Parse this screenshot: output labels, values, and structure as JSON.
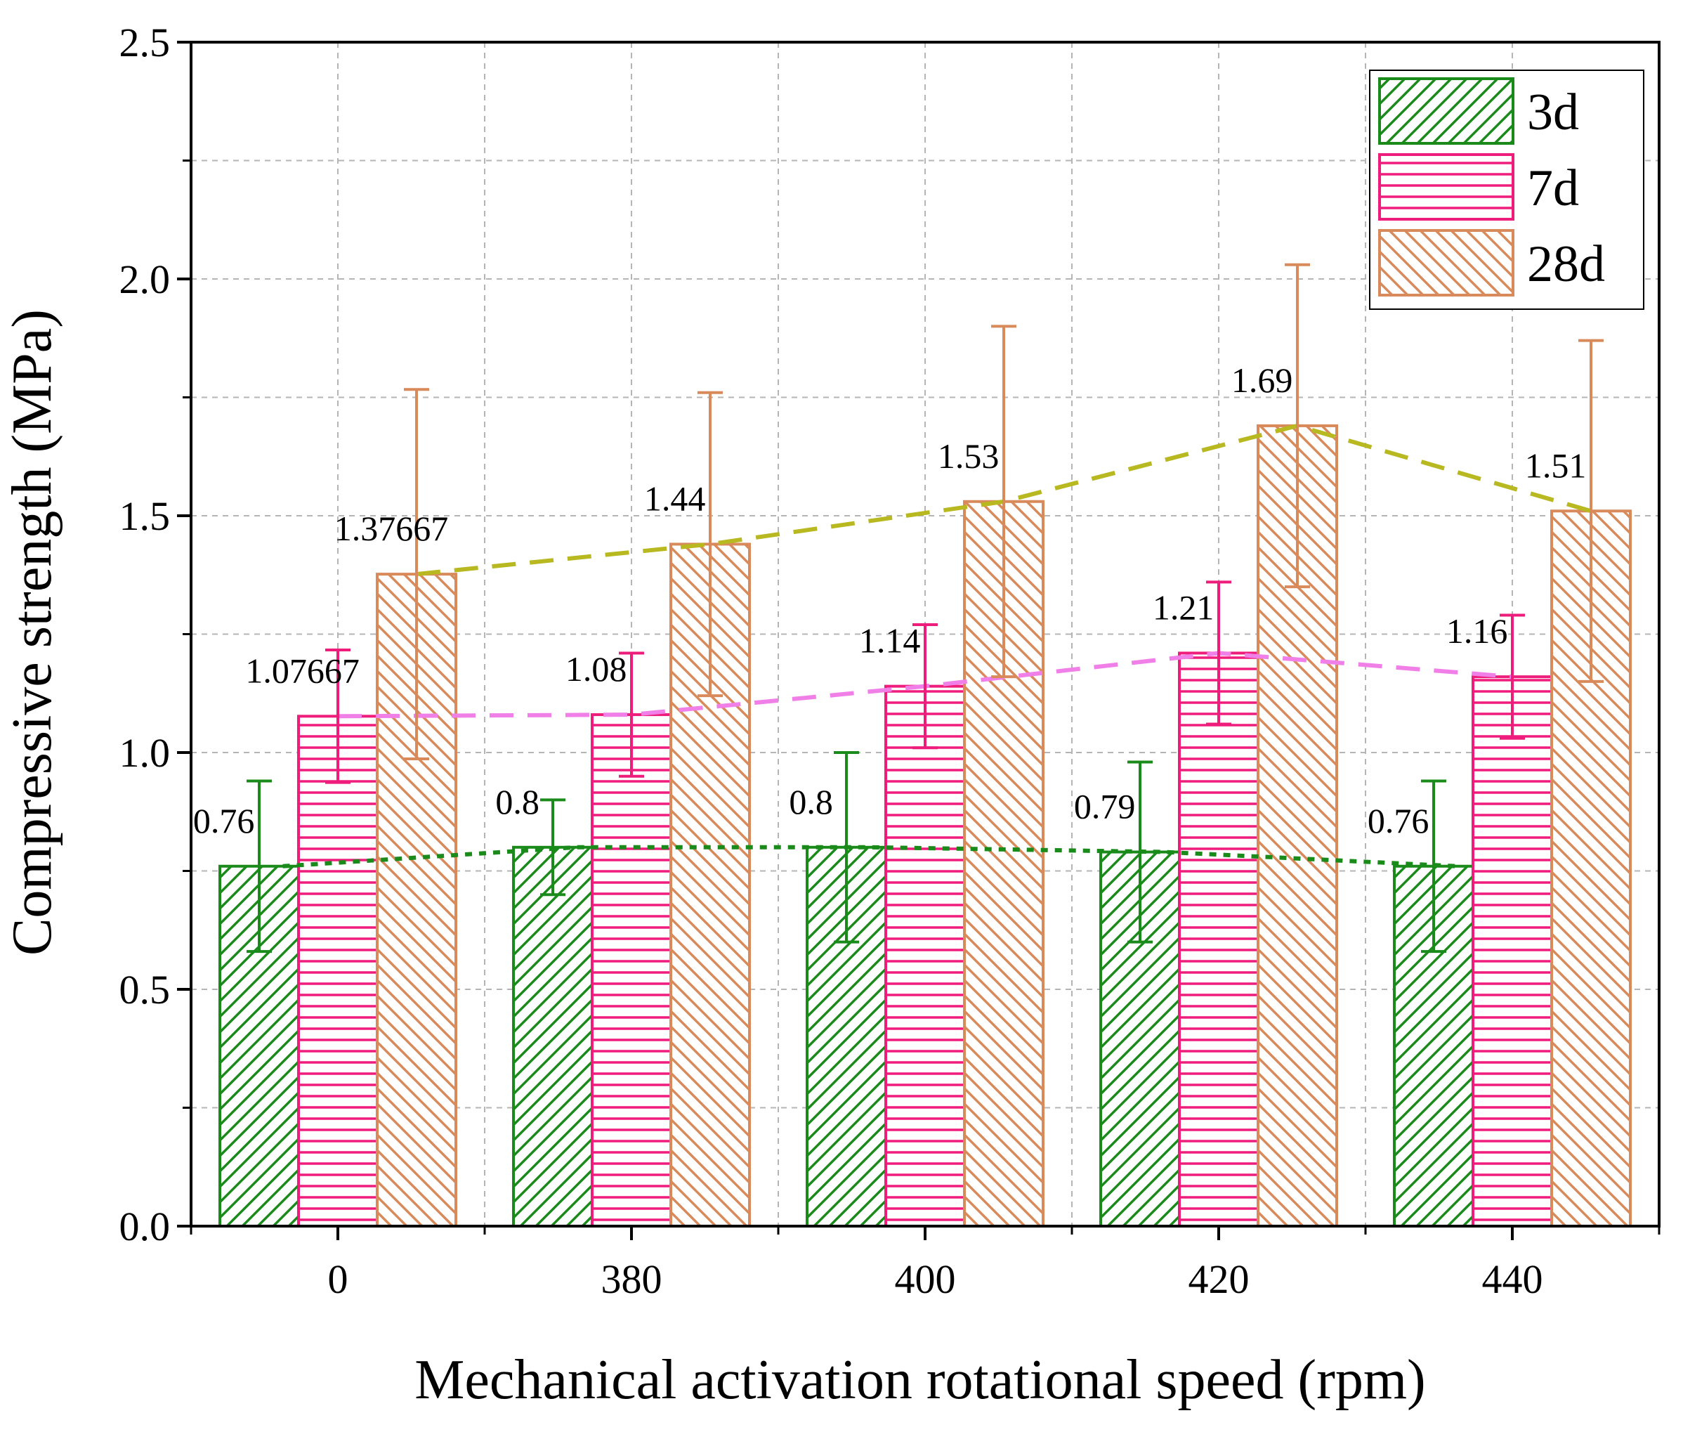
{
  "chart_data": {
    "type": "bar",
    "title": "",
    "xlabel": "Mechanical activation rotational speed (rpm)",
    "ylabel": "Compressive strength (MPa)",
    "categories": [
      "0",
      "380",
      "400",
      "420",
      "440"
    ],
    "ylim": [
      0,
      2.5
    ],
    "yticks": [
      "0.0",
      "0.5",
      "1.0",
      "1.5",
      "2.0",
      "2.5"
    ],
    "grid": true,
    "legend_position": "top-right",
    "series": [
      {
        "name": "3d",
        "color": "#1a8a1a",
        "pattern": "forward-diagonal",
        "values": [
          0.76,
          0.8,
          0.8,
          0.79,
          0.76
        ],
        "labels": [
          "0.76",
          "0.8",
          "0.8",
          "0.79",
          "0.76"
        ],
        "errors": [
          0.18,
          0.1,
          0.2,
          0.19,
          0.18
        ],
        "trend_color": "#1a8a1a",
        "trend_style": "dotted"
      },
      {
        "name": "7d",
        "color": "#ee1c7a",
        "pattern": "horizontal",
        "values": [
          1.07667,
          1.08,
          1.14,
          1.21,
          1.16
        ],
        "labels": [
          "1.07667",
          "1.08",
          "1.14",
          "1.21",
          "1.16"
        ],
        "errors": [
          0.14,
          0.13,
          0.13,
          0.15,
          0.13
        ],
        "trend_color": "#f080e8",
        "trend_style": "dashed"
      },
      {
        "name": "28d",
        "color": "#d88a5a",
        "pattern": "back-diagonal",
        "values": [
          1.37667,
          1.44,
          1.53,
          1.69,
          1.51
        ],
        "labels": [
          "1.37667",
          "1.44",
          "1.53",
          "1.69",
          "1.51"
        ],
        "errors": [
          0.39,
          0.32,
          0.37,
          0.34,
          0.36
        ],
        "trend_color": "#b8b820",
        "trend_style": "dashed"
      }
    ]
  }
}
